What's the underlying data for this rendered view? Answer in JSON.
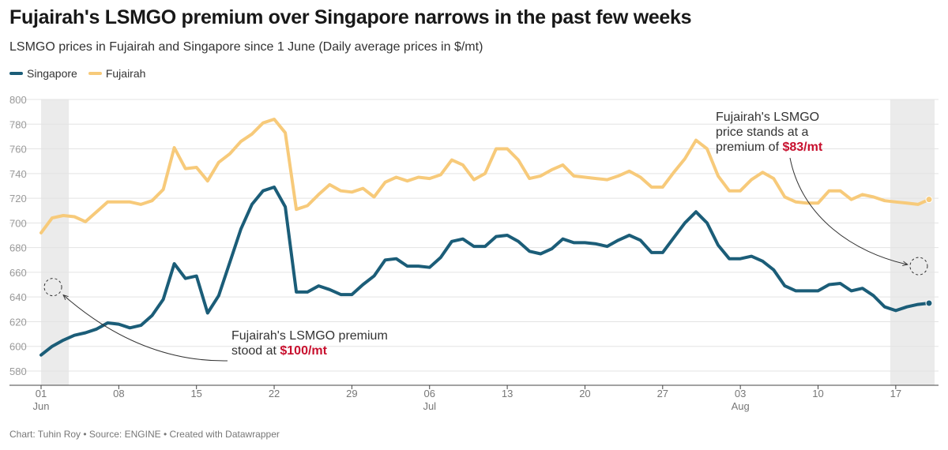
{
  "header": {
    "title": "Fujairah's LSMGO premium over Singapore narrows in the past few weeks",
    "subtitle": "LSMGO prices in Fujairah and Singapore since 1 June (Daily average prices in $/mt)"
  },
  "footer": "Chart: Tuhin Roy • Source: ENGINE • Created with Datawrapper",
  "colors": {
    "singapore": "#1b5d78",
    "fujairah": "#f7ca7a",
    "highlight_band": "#ebebeb",
    "grid": "#e3e3e3",
    "annotation_highlight": "#c8102e"
  },
  "chart_data": {
    "type": "line",
    "title": "Fujairah's LSMGO premium over Singapore narrows in the past few weeks",
    "subtitle": "LSMGO prices in Fujairah and Singapore since 1 June (Daily average prices in $/mt)",
    "unit": "$/mt",
    "ylim": [
      580,
      800
    ],
    "y_ticks": [
      800,
      780,
      760,
      740,
      720,
      700,
      680,
      660,
      640,
      620,
      600,
      580
    ],
    "grid": true,
    "legend_position": "top-left",
    "x": [
      "2023-06-01",
      "2023-06-02",
      "2023-06-03",
      "2023-06-04",
      "2023-06-05",
      "2023-06-06",
      "2023-06-07",
      "2023-06-08",
      "2023-06-09",
      "2023-06-10",
      "2023-06-11",
      "2023-06-12",
      "2023-06-13",
      "2023-06-14",
      "2023-06-15",
      "2023-06-16",
      "2023-06-17",
      "2023-06-18",
      "2023-06-19",
      "2023-06-20",
      "2023-06-21",
      "2023-06-22",
      "2023-06-23",
      "2023-06-24",
      "2023-06-25",
      "2023-06-26",
      "2023-06-27",
      "2023-06-28",
      "2023-06-29",
      "2023-06-30",
      "2023-07-01",
      "2023-07-02",
      "2023-07-03",
      "2023-07-04",
      "2023-07-05",
      "2023-07-06",
      "2023-07-07",
      "2023-07-08",
      "2023-07-09",
      "2023-07-10",
      "2023-07-11",
      "2023-07-12",
      "2023-07-13",
      "2023-07-14",
      "2023-07-15",
      "2023-07-16",
      "2023-07-17",
      "2023-07-18",
      "2023-07-19",
      "2023-07-20",
      "2023-07-21",
      "2023-07-22",
      "2023-07-23",
      "2023-07-24",
      "2023-07-25",
      "2023-07-26",
      "2023-07-27",
      "2023-07-28",
      "2023-07-29",
      "2023-07-30",
      "2023-07-31",
      "2023-08-01",
      "2023-08-02",
      "2023-08-03",
      "2023-08-04",
      "2023-08-05",
      "2023-08-06",
      "2023-08-07",
      "2023-08-08",
      "2023-08-09",
      "2023-08-10",
      "2023-08-11",
      "2023-08-12",
      "2023-08-13",
      "2023-08-14",
      "2023-08-15",
      "2023-08-16",
      "2023-08-17",
      "2023-08-18",
      "2023-08-19",
      "2023-08-20"
    ],
    "x_ticks": [
      {
        "date": "2023-06-01",
        "day": "01",
        "month": "Jun"
      },
      {
        "date": "2023-06-08",
        "day": "08",
        "month": ""
      },
      {
        "date": "2023-06-15",
        "day": "15",
        "month": ""
      },
      {
        "date": "2023-06-22",
        "day": "22",
        "month": ""
      },
      {
        "date": "2023-06-29",
        "day": "29",
        "month": ""
      },
      {
        "date": "2023-07-06",
        "day": "06",
        "month": "Jul"
      },
      {
        "date": "2023-07-13",
        "day": "13",
        "month": ""
      },
      {
        "date": "2023-07-20",
        "day": "20",
        "month": ""
      },
      {
        "date": "2023-07-27",
        "day": "27",
        "month": ""
      },
      {
        "date": "2023-08-03",
        "day": "03",
        "month": "Aug"
      },
      {
        "date": "2023-08-10",
        "day": "10",
        "month": ""
      },
      {
        "date": "2023-08-17",
        "day": "17",
        "month": ""
      }
    ],
    "highlight_ranges": [
      [
        "2023-06-01",
        "2023-06-03"
      ],
      [
        "2023-08-17",
        "2023-08-20"
      ]
    ],
    "series": [
      {
        "name": "Singapore",
        "color": "#1b5d78",
        "values": [
          593,
          600,
          605,
          609,
          611,
          614,
          619,
          618,
          615,
          617,
          625,
          638,
          667,
          655,
          657,
          627,
          641,
          668,
          695,
          715,
          726,
          729,
          713,
          644,
          644,
          649,
          646,
          642,
          642,
          650,
          657,
          670,
          671,
          665,
          665,
          664,
          672,
          685,
          687,
          681,
          681,
          689,
          690,
          685,
          677,
          675,
          679,
          687,
          684,
          684,
          683,
          681,
          686,
          690,
          686,
          676,
          676,
          688,
          700,
          709,
          700,
          682,
          671,
          671,
          673,
          669,
          662,
          649,
          645,
          645,
          645,
          650,
          651,
          645,
          647,
          641,
          632,
          629,
          632,
          634,
          635
        ]
      },
      {
        "name": "Fujairah",
        "color": "#f7ca7a",
        "values": [
          692,
          704,
          706,
          705,
          701,
          709,
          717,
          717,
          717,
          715,
          718,
          727,
          761,
          744,
          745,
          734,
          749,
          756,
          766,
          772,
          781,
          784,
          773,
          711,
          714,
          723,
          731,
          726,
          725,
          728,
          721,
          733,
          737,
          734,
          737,
          736,
          739,
          751,
          747,
          735,
          740,
          760,
          760,
          751,
          736,
          738,
          743,
          747,
          738,
          737,
          736,
          735,
          738,
          742,
          737,
          729,
          729,
          741,
          752,
          767,
          760,
          738,
          726,
          726,
          735,
          741,
          736,
          721,
          717,
          716,
          716,
          726,
          726,
          719,
          723,
          721,
          718,
          717,
          716,
          715,
          719
        ]
      }
    ],
    "annotations": [
      {
        "lines": [
          "Fujairah's LSMGO premium",
          "stood at "
        ],
        "highlight": "$100/mt",
        "anchor_date": "2023-06-02",
        "anchor_value": 648
      },
      {
        "lines": [
          "Fujairah's LSMGO",
          "price stands at a",
          "premium of "
        ],
        "highlight": "$83/mt",
        "anchor_date": "2023-08-19",
        "anchor_value": 665
      }
    ]
  }
}
